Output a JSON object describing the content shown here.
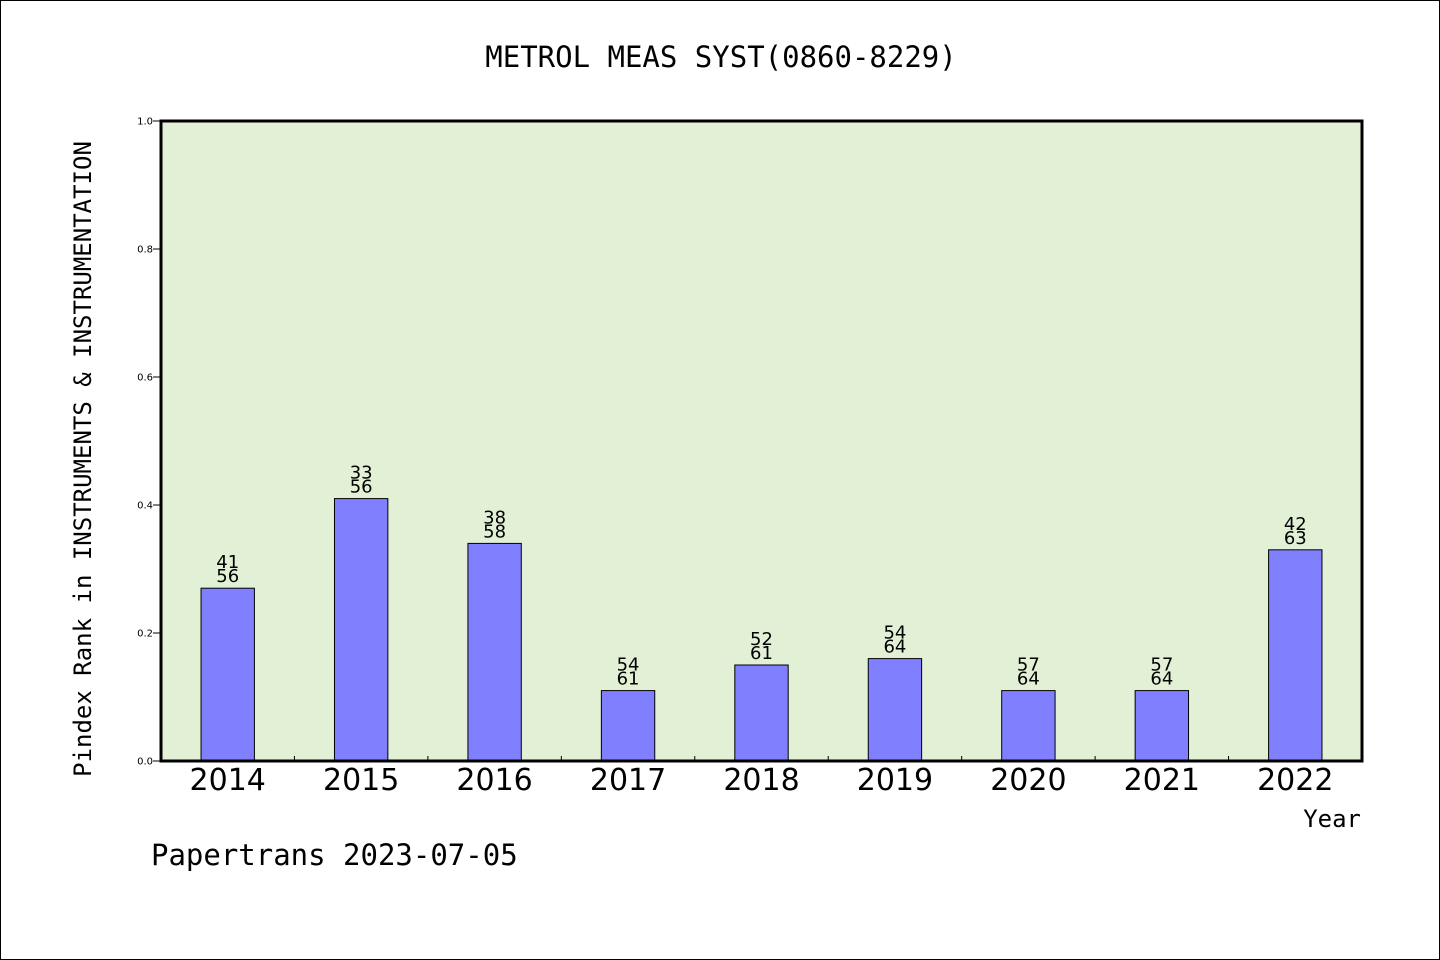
{
  "chart_data": {
    "type": "bar",
    "title": "METROL MEAS SYST(0860-8229)",
    "xlabel": "Year",
    "ylabel": "Pindex Rank in INSTRUMENTS & INSTRUMENTATION",
    "footer": "Papertrans 2023-07-05",
    "categories": [
      "2014",
      "2015",
      "2016",
      "2017",
      "2018",
      "2019",
      "2020",
      "2021",
      "2022"
    ],
    "values": [
      0.27,
      0.41,
      0.34,
      0.11,
      0.15,
      0.16,
      0.11,
      0.11,
      0.33
    ],
    "rank_labels": [
      [
        "41",
        "56"
      ],
      [
        "33",
        "56"
      ],
      [
        "38",
        "58"
      ],
      [
        "54",
        "61"
      ],
      [
        "52",
        "61"
      ],
      [
        "54",
        "64"
      ],
      [
        "57",
        "64"
      ],
      [
        "57",
        "64"
      ],
      [
        "42",
        "63"
      ]
    ],
    "ylim": [
      0,
      1.0
    ],
    "yticks": [
      "0.0",
      "0.2",
      "0.4",
      "0.6",
      "0.8",
      "1.0"
    ],
    "colors": {
      "bar": "#8080ff",
      "plot_bg": "#e2f0d6",
      "axis": "#000000"
    }
  }
}
